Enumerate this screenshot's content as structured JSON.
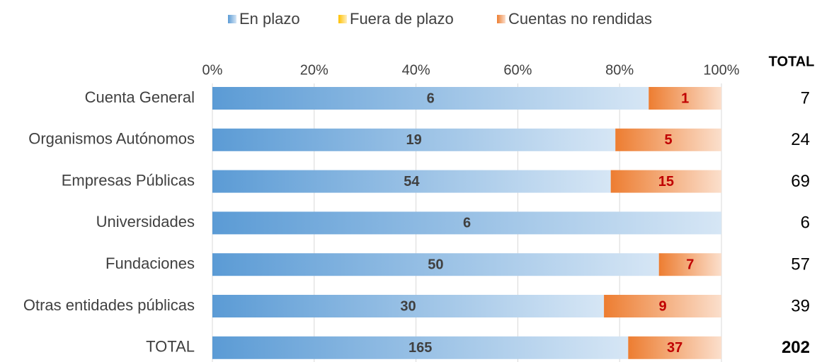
{
  "chart_data": {
    "type": "bar",
    "orientation": "horizontal",
    "stacking": "percent",
    "categories": [
      "Cuenta General",
      "Organismos Autónomos",
      "Empresas Públicas",
      "Universidades",
      "Fundaciones",
      "Otras entidades públicas",
      "TOTAL"
    ],
    "series": [
      {
        "name": "En plazo",
        "color": "#5b9bd5",
        "values": [
          6,
          19,
          54,
          6,
          50,
          30,
          165
        ]
      },
      {
        "name": "Fuera de plazo",
        "color": "#ffc000",
        "values": [
          0,
          0,
          0,
          0,
          0,
          0,
          0
        ]
      },
      {
        "name": "Cuentas no rendidas",
        "color": "#ed7d31",
        "values": [
          1,
          5,
          15,
          0,
          7,
          9,
          37
        ]
      }
    ],
    "totals_title": "TOTAL",
    "totals": [
      7,
      24,
      69,
      6,
      57,
      39,
      202
    ],
    "xlim": [
      0,
      100
    ],
    "xticks": [
      {
        "value": 0,
        "label": "0%"
      },
      {
        "value": 20,
        "label": "20%"
      },
      {
        "value": 40,
        "label": "40%"
      },
      {
        "value": 60,
        "label": "60%"
      },
      {
        "value": 80,
        "label": "80%"
      },
      {
        "value": 100,
        "label": "100%"
      }
    ],
    "grid": true,
    "legend": "top"
  }
}
